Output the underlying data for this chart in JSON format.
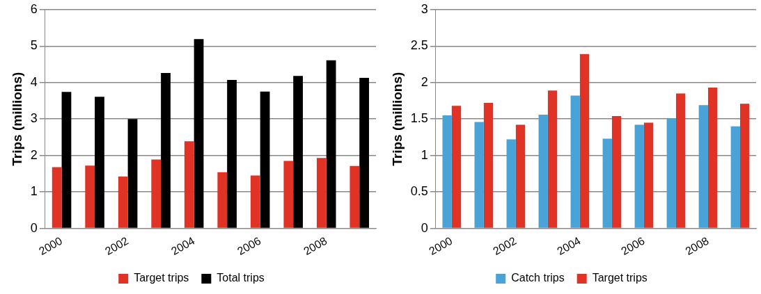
{
  "chart_data": [
    {
      "type": "bar",
      "ylabel": "Trips (millions)",
      "categories": [
        "2000",
        null,
        "2002",
        null,
        "2004",
        null,
        "2006",
        null,
        "2008",
        null
      ],
      "ylim": [
        0,
        6
      ],
      "yticks": [
        0,
        1,
        2,
        3,
        4,
        5,
        6
      ],
      "grid": "y",
      "legend": "bottom",
      "series": [
        {
          "name": "Target trips",
          "color": "#e03225",
          "values": [
            1.68,
            1.72,
            1.42,
            1.89,
            2.39,
            1.54,
            1.45,
            1.85,
            1.93,
            1.71
          ]
        },
        {
          "name": "Total trips",
          "color": "#000000",
          "values": [
            3.74,
            3.61,
            3.0,
            4.26,
            5.19,
            4.07,
            3.75,
            4.18,
            4.61,
            4.13
          ]
        }
      ]
    },
    {
      "type": "bar",
      "ylabel": "Trips (millions)",
      "categories": [
        "2000",
        null,
        "2002",
        null,
        "2004",
        null,
        "2006",
        null,
        "2008",
        null
      ],
      "ylim": [
        0,
        3
      ],
      "yticks": [
        0,
        0.5,
        1,
        1.5,
        2,
        2.5,
        3
      ],
      "grid": "y",
      "legend": "bottom",
      "series": [
        {
          "name": "Catch trips",
          "color": "#4aa3d6",
          "values": [
            1.55,
            1.46,
            1.22,
            1.56,
            1.82,
            1.23,
            1.42,
            1.51,
            1.69,
            1.4
          ]
        },
        {
          "name": "Target trips",
          "color": "#e03225",
          "values": [
            1.68,
            1.72,
            1.42,
            1.89,
            2.39,
            1.54,
            1.45,
            1.85,
            1.93,
            1.71
          ]
        }
      ]
    }
  ]
}
